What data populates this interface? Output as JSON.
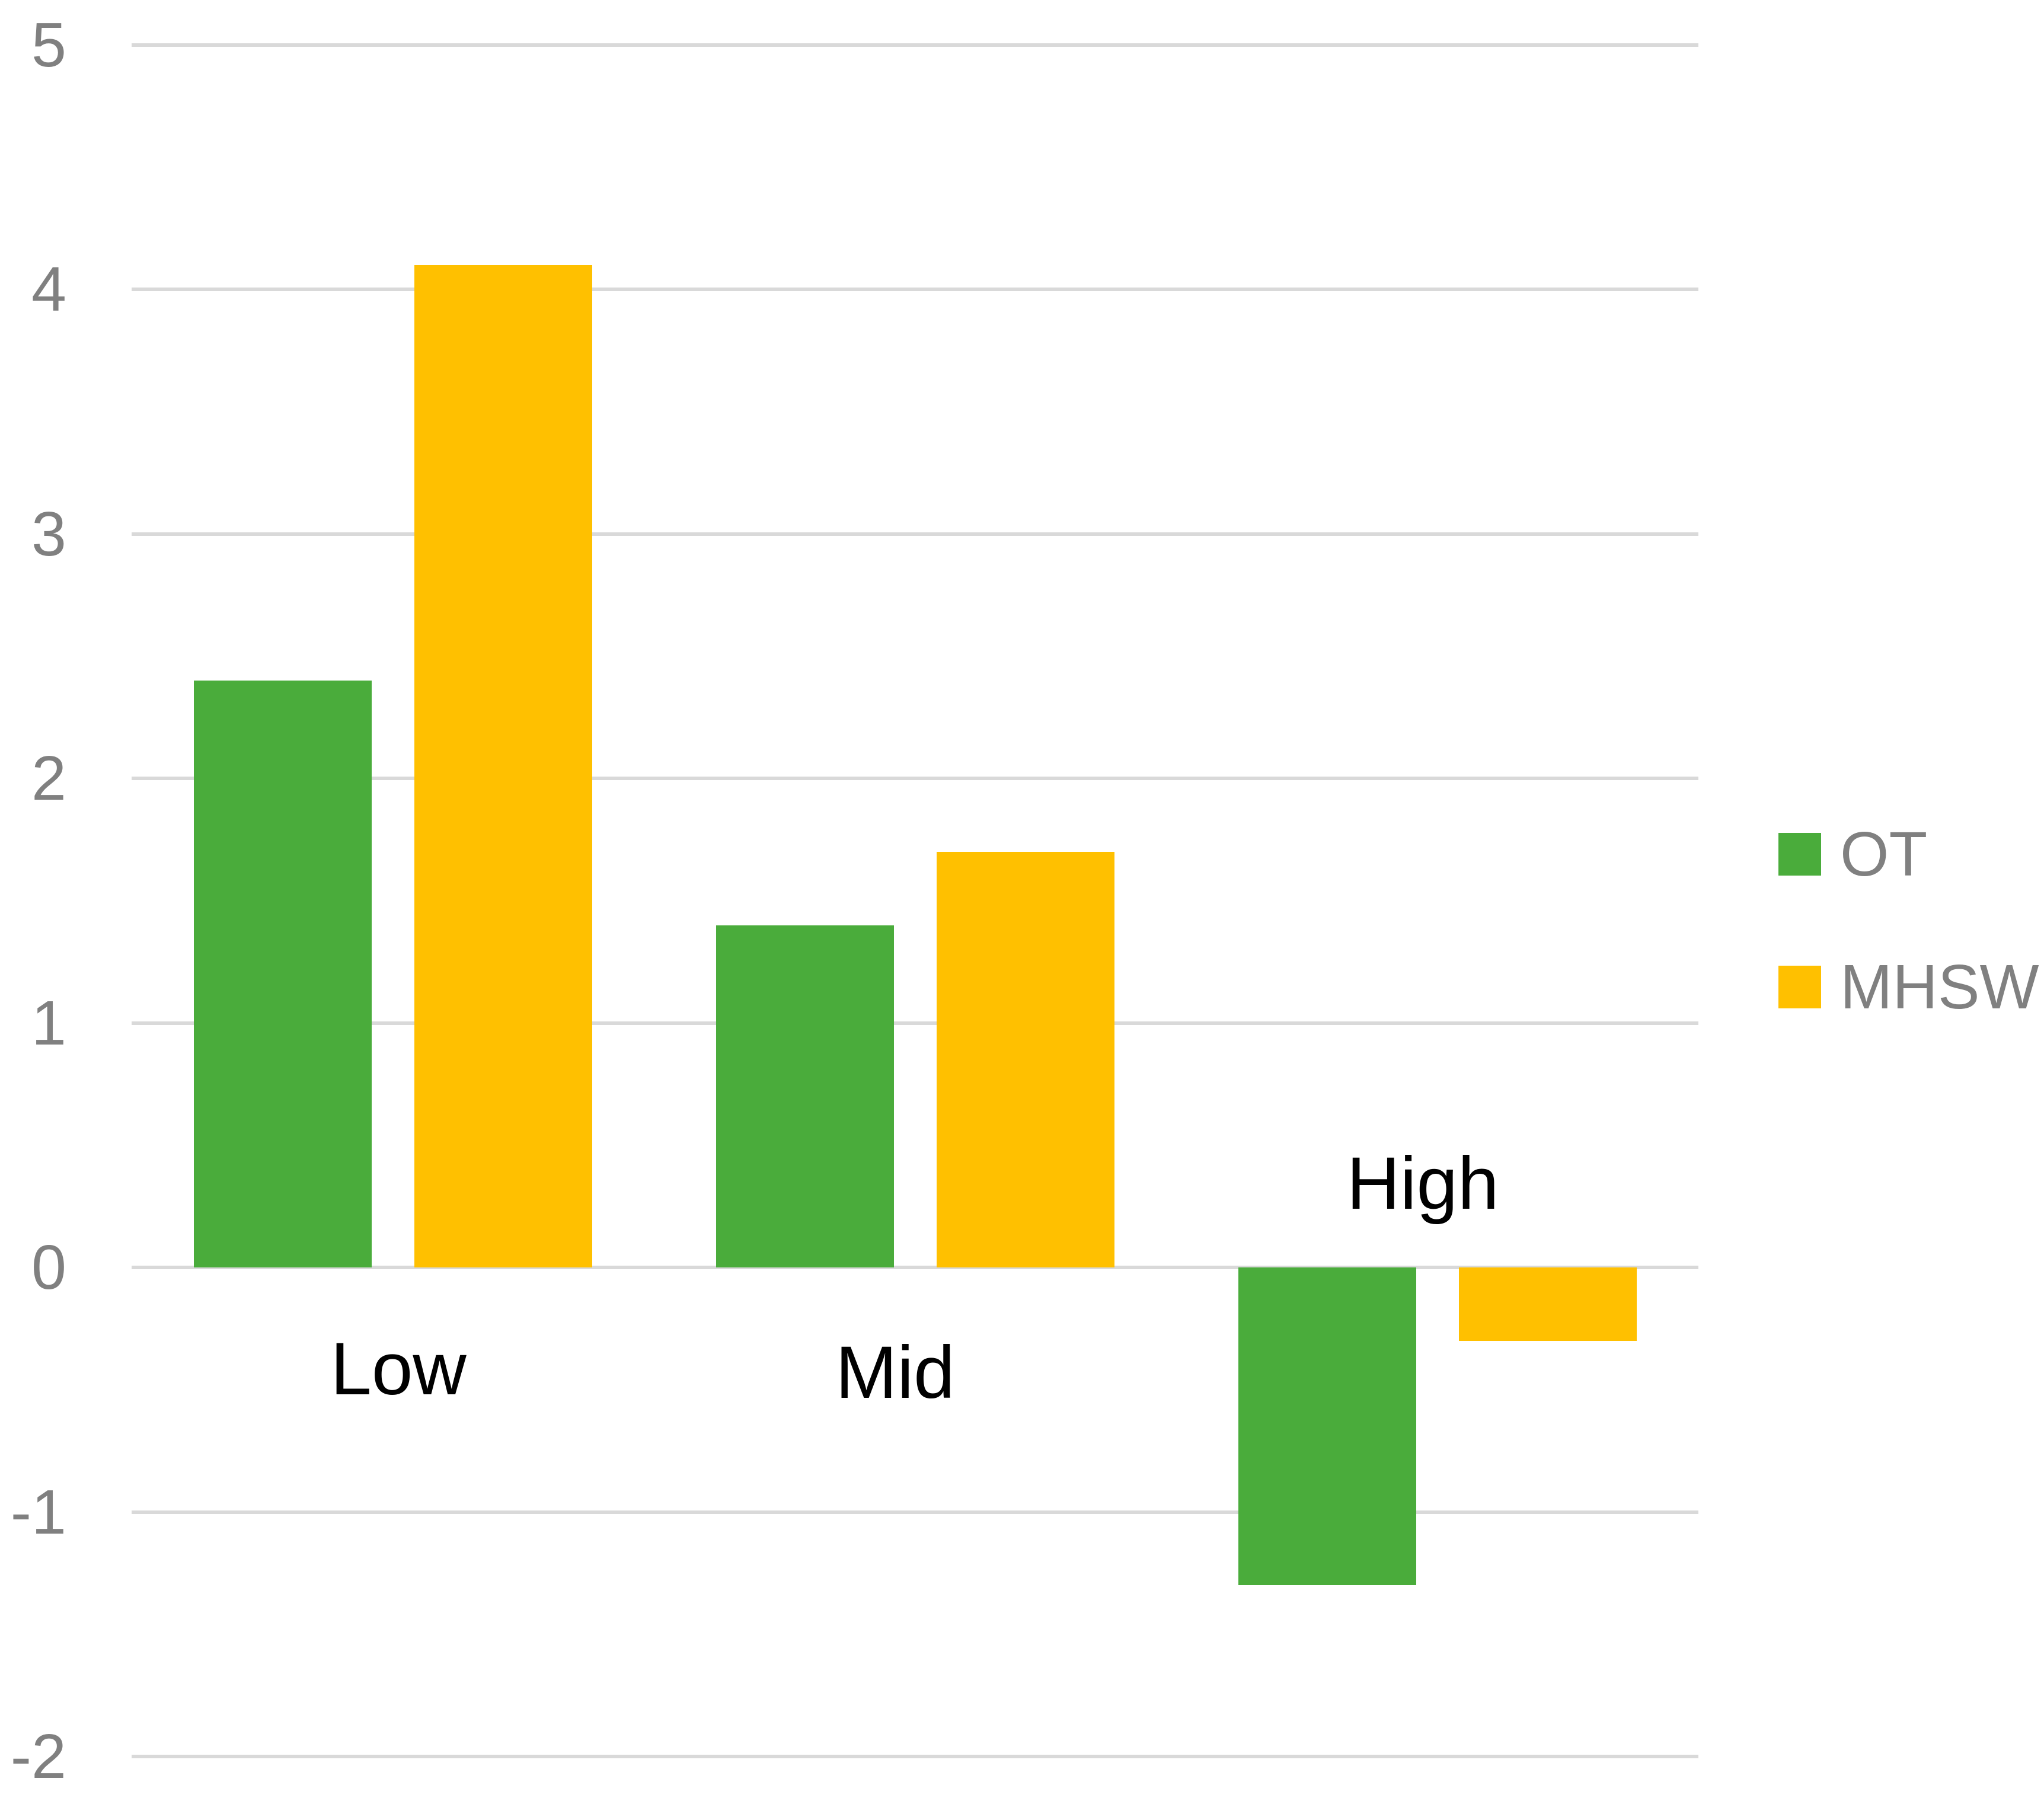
{
  "chart_data": {
    "type": "bar",
    "title": "",
    "xlabel": "",
    "ylabel": "",
    "categories": [
      "Low",
      "Mid",
      "High"
    ],
    "series": [
      {
        "name": "OT",
        "color": "#4AAC3B",
        "values": [
          2.4,
          1.4,
          -1.3
        ]
      },
      {
        "name": "MHSW",
        "color": "#FFC000",
        "values": [
          4.1,
          1.7,
          -0.3
        ]
      }
    ],
    "ylim": [
      -2,
      5
    ],
    "ytick_step": 1,
    "ytick_labels": [
      "5",
      "4",
      "3",
      "2",
      "1",
      "0",
      "-1",
      "-2"
    ],
    "grid": "horizontal-only",
    "gridline_color": "#D9D9D9",
    "tick_label_color": "#808080",
    "legend_text_color": "#808080",
    "category_label_color": "#000000",
    "background_color": "#FFFFFF",
    "legend_position": "right"
  }
}
